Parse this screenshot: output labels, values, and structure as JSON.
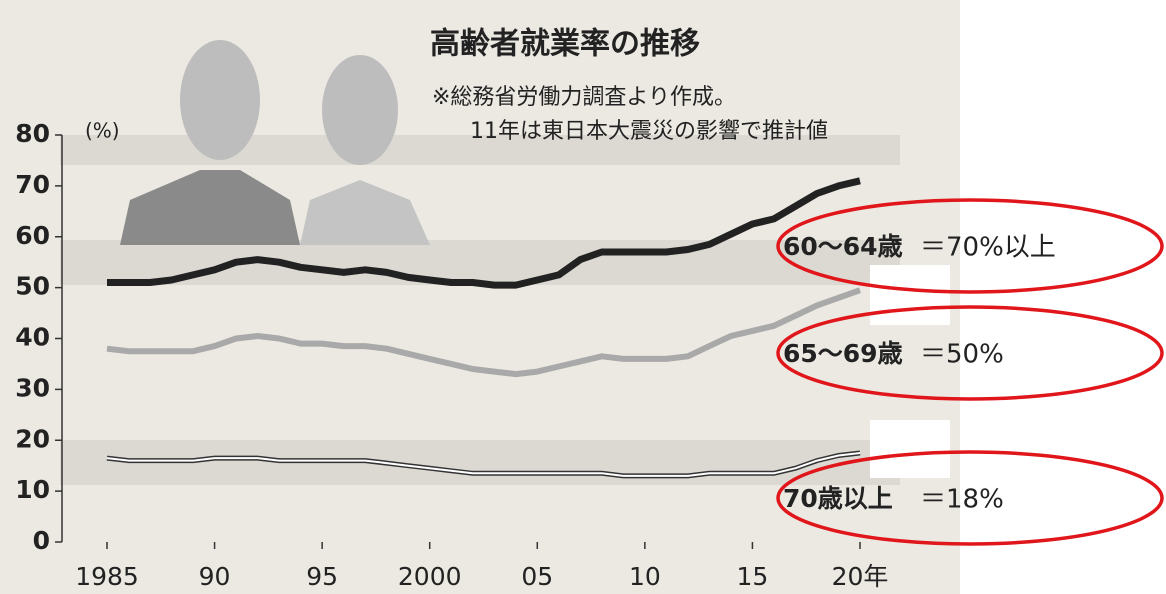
{
  "chart_data": {
    "type": "line",
    "title": "高齢者就業率の推移",
    "subtitle": "※総務省労働力調査より作成。",
    "note": "11年は東日本大震災の影響で推計値",
    "y_label": "(%)",
    "x": [
      1985,
      1986,
      1987,
      1988,
      1989,
      1990,
      1991,
      1992,
      1993,
      1994,
      1995,
      1996,
      1997,
      1998,
      1999,
      2000,
      2001,
      2002,
      2003,
      2004,
      2005,
      2006,
      2007,
      2008,
      2009,
      2010,
      2011,
      2012,
      2013,
      2014,
      2015,
      2016,
      2017,
      2018,
      2019,
      2020
    ],
    "xlim": [
      1985,
      2020
    ],
    "xticks": [
      1985,
      {
        "value": 1990,
        "label": "90"
      },
      {
        "value": 1995,
        "label": "95"
      },
      2000,
      {
        "value": 2005,
        "label": "05"
      },
      {
        "value": 2010,
        "label": "10"
      },
      {
        "value": 2015,
        "label": "15"
      },
      {
        "value": 2020,
        "label": "20年"
      }
    ],
    "ylim": [
      0,
      80
    ],
    "yticks": [
      0,
      10,
      20,
      30,
      40,
      50,
      60,
      70,
      80
    ],
    "series": [
      {
        "name": "60～64歳",
        "color": "#222222",
        "values": [
          51,
          51,
          51,
          51.5,
          52.5,
          53.5,
          55,
          55.5,
          55,
          54,
          53.5,
          53,
          53.5,
          53,
          52,
          51.5,
          51,
          51,
          50.5,
          50.5,
          51.5,
          52.5,
          55.5,
          57,
          57,
          57,
          57,
          57.5,
          58.5,
          60.5,
          62.5,
          63.5,
          66,
          68.5,
          70,
          71
        ]
      },
      {
        "name": "65～69歳",
        "color": "#a9a9a9",
        "values": [
          38,
          37.5,
          37.5,
          37.5,
          37.5,
          38.5,
          40,
          40.5,
          40,
          39,
          39,
          38.5,
          38.5,
          38,
          37,
          36,
          35,
          34,
          33.5,
          33,
          33.5,
          34.5,
          35.5,
          36.5,
          36,
          36,
          36,
          36.5,
          38.5,
          40.5,
          41.5,
          42.5,
          44.5,
          46.5,
          48,
          49.5
        ]
      },
      {
        "name": "70歳以上",
        "color": "#ffffff",
        "values": [
          16.5,
          16,
          16,
          16,
          16,
          16.5,
          16.5,
          16.5,
          16,
          16,
          16,
          16,
          16,
          15.5,
          15,
          14.5,
          14,
          13.5,
          13.5,
          13.5,
          13.5,
          13.5,
          13.5,
          13.5,
          13,
          13,
          13,
          13,
          13.5,
          13.5,
          13.5,
          13.5,
          14.5,
          16,
          17,
          17.5
        ]
      }
    ],
    "annotations": [
      "＝70%以上",
      "＝50%",
      "＝18%"
    ]
  }
}
